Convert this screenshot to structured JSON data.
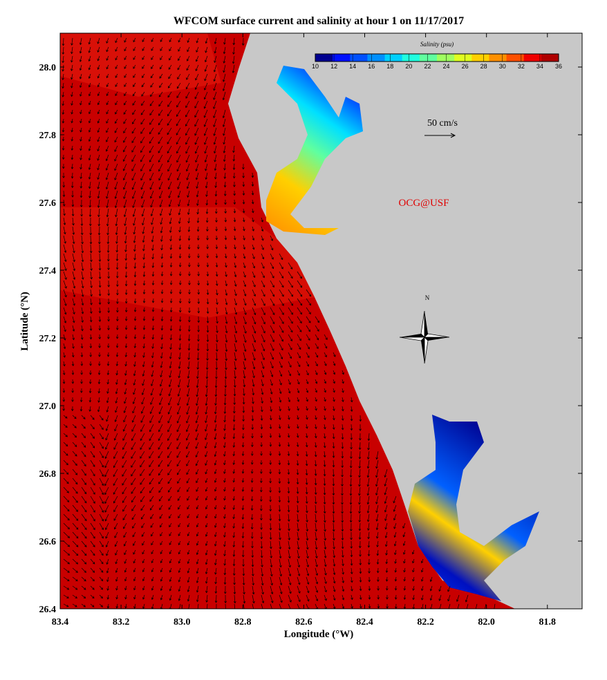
{
  "chart_data": {
    "type": "map",
    "title": "WFCOM surface current and salinity at hour 1 on 11/17/2017",
    "x_label": "Longitude (°W)",
    "y_label": "Latitude (°N)",
    "xlim": [
      83.4,
      81.686
    ],
    "ylim": [
      26.4,
      28.1
    ],
    "xticks": [
      83.4,
      83.2,
      {
        "value": 83,
        "label": "83.0"
      },
      82.8,
      82.6,
      82.4,
      82.2,
      {
        "value": 82,
        "label": "82.0"
      },
      81.8
    ],
    "yticks": [
      26.4,
      26.6,
      26.8,
      {
        "value": 27,
        "label": "27.0"
      },
      27.2,
      27.4,
      27.6,
      27.8,
      {
        "value": 28,
        "label": "28.0"
      }
    ],
    "colorbar": {
      "label": "Salinity (psu)",
      "lim": [
        10,
        36
      ],
      "ticks": [
        10,
        12,
        14,
        16,
        18,
        20,
        22,
        24,
        26,
        28,
        30,
        32,
        34,
        36
      ],
      "colors": [
        "#00008f",
        "#0010ff",
        "#0050ff",
        "#0090ff",
        "#00d0ff",
        "#20ffdf",
        "#60ff9f",
        "#a0ff60",
        "#e0ff20",
        "#ffd000",
        "#ff9000",
        "#ff5000",
        "#ef0000",
        "#af0000"
      ]
    },
    "scale_label": "50 cm/s",
    "watermark": "OCG@USF",
    "compass_label": "N"
  }
}
